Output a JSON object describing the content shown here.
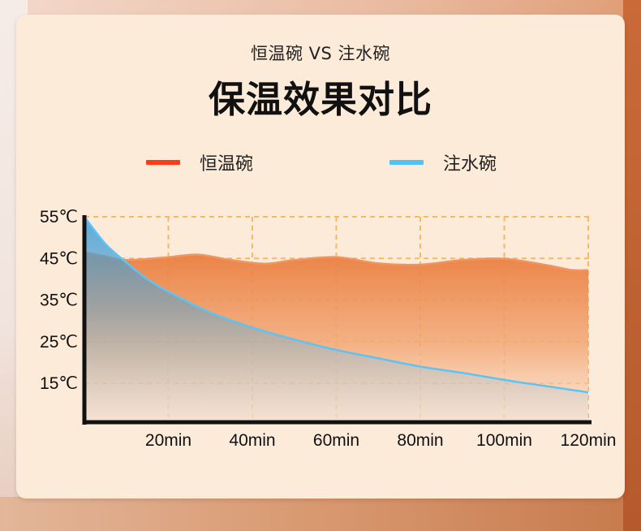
{
  "header": {
    "subtitle": "恒温碗 VS 注水碗",
    "title": "保温效果对比"
  },
  "legend": [
    {
      "label": "恒温碗",
      "color": "#ff3b1a"
    },
    {
      "label": "注水碗",
      "color": "#4fc3f7"
    }
  ],
  "chart_data": {
    "type": "area",
    "title": "保温效果对比",
    "xlabel": "",
    "ylabel": "",
    "x_unit": "min",
    "y_unit": "℃",
    "xlim": [
      0,
      120
    ],
    "ylim": [
      5,
      55
    ],
    "x_ticks": [
      20,
      40,
      60,
      80,
      100,
      120
    ],
    "x_tick_labels": [
      "20min",
      "40min",
      "60min",
      "80min",
      "100min",
      "120min"
    ],
    "y_ticks": [
      15,
      25,
      35,
      45,
      55
    ],
    "y_tick_labels": [
      "15℃",
      "25℃",
      "35℃",
      "45℃",
      "55℃"
    ],
    "grid": true,
    "legend_position": "top",
    "series": [
      {
        "name": "恒温碗",
        "color": "#ee8a52",
        "x": [
          0,
          5,
          10,
          20,
          27,
          35,
          43,
          50,
          60,
          70,
          80,
          90,
          100,
          110,
          116,
          120
        ],
        "y": [
          46.5,
          45.5,
          44.6,
          45.3,
          45.9,
          44.6,
          43.7,
          44.6,
          45.3,
          43.8,
          43.5,
          44.6,
          44.9,
          43.4,
          42.2,
          42.2
        ]
      },
      {
        "name": "注水碗",
        "color": "#4fc3f7",
        "x": [
          0,
          5,
          10,
          15,
          20,
          30,
          40,
          50,
          60,
          70,
          80,
          90,
          100,
          110,
          120
        ],
        "y": [
          55,
          48.5,
          44,
          40,
          37,
          32,
          28.4,
          25.5,
          23,
          21,
          19,
          17.5,
          15.8,
          14.3,
          12.8
        ]
      }
    ]
  }
}
